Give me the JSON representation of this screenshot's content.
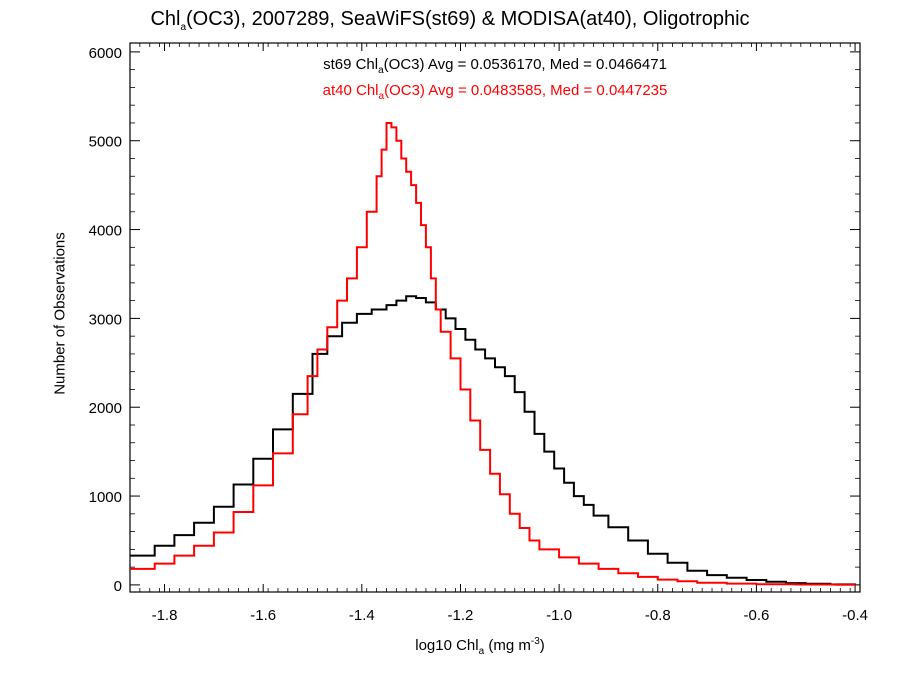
{
  "title": {
    "prefix": "Chl",
    "sub": "a",
    "suffix": "(OC3), 2007289, SeaWiFS(st69) & MODISA(at40), Oligotrophic"
  },
  "legend": {
    "black": {
      "prefix": "st69 Chl",
      "sub": "a",
      "suffix": "(OC3) Avg = 0.0536170, Med = 0.0466471",
      "color": "#000000"
    },
    "red": {
      "prefix": "at40 Chl",
      "sub": "a",
      "suffix": "(OC3) Avg = 0.0483585, Med = 0.0447235",
      "color": "#ff0000"
    }
  },
  "ylabel": "Number of Observations",
  "xlabel": {
    "prefix": "log10 Chl",
    "sub": "a",
    "mid": " (mg m",
    "sup": "-3",
    "suffix": ")"
  },
  "chart_data": {
    "type": "line",
    "xlim": [
      -1.87,
      -0.39
    ],
    "ylim": [
      -80,
      6100
    ],
    "xticks": [
      -1.8,
      -1.6,
      -1.4,
      -1.2,
      -1.0,
      -0.8,
      -0.6,
      -0.4
    ],
    "xtick_labels": [
      "-1.8",
      "-1.6",
      "-1.4",
      "-1.2",
      "-1.0",
      "-0.8",
      "-0.6",
      "-0.4"
    ],
    "yticks": [
      0,
      1000,
      2000,
      3000,
      4000,
      5000,
      6000
    ],
    "ytick_labels": [
      "0",
      "1000",
      "2000",
      "3000",
      "4000",
      "5000",
      "6000"
    ],
    "grid": false,
    "series": [
      {
        "name": "st69",
        "color": "#000000",
        "points": [
          [
            -1.87,
            330
          ],
          [
            -1.82,
            440
          ],
          [
            -1.78,
            560
          ],
          [
            -1.74,
            700
          ],
          [
            -1.7,
            880
          ],
          [
            -1.66,
            1130
          ],
          [
            -1.62,
            1420
          ],
          [
            -1.58,
            1750
          ],
          [
            -1.54,
            2150
          ],
          [
            -1.5,
            2600
          ],
          [
            -1.47,
            2800
          ],
          [
            -1.44,
            2950
          ],
          [
            -1.41,
            3050
          ],
          [
            -1.38,
            3100
          ],
          [
            -1.35,
            3150
          ],
          [
            -1.33,
            3200
          ],
          [
            -1.31,
            3250
          ],
          [
            -1.29,
            3230
          ],
          [
            -1.27,
            3180
          ],
          [
            -1.25,
            3100
          ],
          [
            -1.23,
            3000
          ],
          [
            -1.21,
            2880
          ],
          [
            -1.19,
            2760
          ],
          [
            -1.17,
            2650
          ],
          [
            -1.15,
            2550
          ],
          [
            -1.13,
            2450
          ],
          [
            -1.11,
            2350
          ],
          [
            -1.09,
            2170
          ],
          [
            -1.07,
            1950
          ],
          [
            -1.05,
            1700
          ],
          [
            -1.03,
            1500
          ],
          [
            -1.01,
            1310
          ],
          [
            -0.99,
            1150
          ],
          [
            -0.97,
            1000
          ],
          [
            -0.95,
            900
          ],
          [
            -0.93,
            780
          ],
          [
            -0.9,
            650
          ],
          [
            -0.86,
            500
          ],
          [
            -0.82,
            350
          ],
          [
            -0.78,
            250
          ],
          [
            -0.74,
            160
          ],
          [
            -0.7,
            110
          ],
          [
            -0.66,
            80
          ],
          [
            -0.62,
            55
          ],
          [
            -0.58,
            35
          ],
          [
            -0.54,
            20
          ],
          [
            -0.5,
            12
          ],
          [
            -0.45,
            6
          ],
          [
            -0.4,
            3
          ]
        ]
      },
      {
        "name": "at40",
        "color": "#ff0000",
        "points": [
          [
            -1.87,
            180
          ],
          [
            -1.82,
            240
          ],
          [
            -1.78,
            330
          ],
          [
            -1.74,
            440
          ],
          [
            -1.7,
            590
          ],
          [
            -1.66,
            820
          ],
          [
            -1.62,
            1120
          ],
          [
            -1.58,
            1480
          ],
          [
            -1.54,
            1920
          ],
          [
            -1.51,
            2350
          ],
          [
            -1.49,
            2650
          ],
          [
            -1.47,
            2900
          ],
          [
            -1.45,
            3200
          ],
          [
            -1.43,
            3450
          ],
          [
            -1.41,
            3800
          ],
          [
            -1.39,
            4200
          ],
          [
            -1.37,
            4600
          ],
          [
            -1.36,
            4900
          ],
          [
            -1.35,
            5200
          ],
          [
            -1.34,
            5150
          ],
          [
            -1.33,
            5000
          ],
          [
            -1.32,
            4800
          ],
          [
            -1.31,
            4650
          ],
          [
            -1.3,
            4500
          ],
          [
            -1.29,
            4300
          ],
          [
            -1.28,
            4050
          ],
          [
            -1.27,
            3800
          ],
          [
            -1.26,
            3450
          ],
          [
            -1.25,
            3100
          ],
          [
            -1.24,
            2850
          ],
          [
            -1.22,
            2550
          ],
          [
            -1.2,
            2200
          ],
          [
            -1.18,
            1850
          ],
          [
            -1.16,
            1520
          ],
          [
            -1.14,
            1250
          ],
          [
            -1.12,
            1020
          ],
          [
            -1.1,
            800
          ],
          [
            -1.08,
            640
          ],
          [
            -1.06,
            500
          ],
          [
            -1.04,
            400
          ],
          [
            -1.0,
            310
          ],
          [
            -0.96,
            240
          ],
          [
            -0.92,
            180
          ],
          [
            -0.88,
            130
          ],
          [
            -0.84,
            90
          ],
          [
            -0.8,
            60
          ],
          [
            -0.76,
            40
          ],
          [
            -0.72,
            25
          ],
          [
            -0.66,
            15
          ],
          [
            -0.6,
            8
          ],
          [
            -0.52,
            4
          ],
          [
            -0.44,
            2
          ],
          [
            -0.4,
            1
          ]
        ]
      }
    ]
  }
}
